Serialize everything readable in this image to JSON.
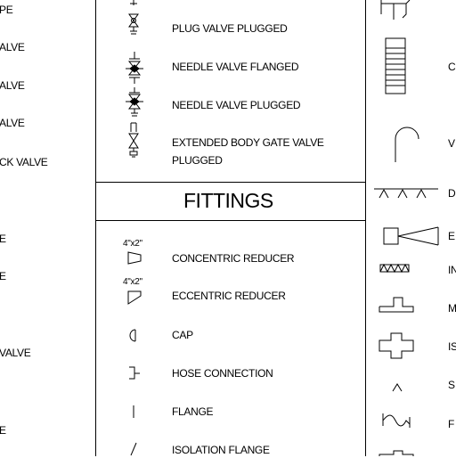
{
  "left_column_fragments": [
    "PE",
    "ALVE",
    "ALVE",
    "ALVE",
    "CK VALVE",
    "E",
    "E",
    "VALVE",
    "E"
  ],
  "valves": [
    {
      "label": "PLUG VALVE PLUGGED",
      "icon": "plug-valve-plugged-icon"
    },
    {
      "label": "NEEDLE VALVE FLANGED",
      "icon": "needle-valve-flanged-icon"
    },
    {
      "label": "NEEDLE VALVE PLUGGED",
      "icon": "needle-valve-plugged-icon"
    },
    {
      "label": "EXTENDED BODY GATE VALVE",
      "label2": "PLUGGED",
      "icon": "extended-body-gate-valve-plugged-icon"
    }
  ],
  "fittings_heading": "FITTINGS",
  "fittings": [
    {
      "label": "CONCENTRIC REDUCER",
      "size": "4\"x2\"",
      "icon": "concentric-reducer-icon"
    },
    {
      "label": "ECCENTRIC REDUCER",
      "size": "4\"x2\"",
      "icon": "eccentric-reducer-icon"
    },
    {
      "label": "CAP",
      "icon": "cap-icon"
    },
    {
      "label": "HOSE CONNECTION",
      "icon": "hose-connection-icon"
    },
    {
      "label": "FLANGE",
      "icon": "flange-icon"
    },
    {
      "label": "ISOLATION FLANGE",
      "icon": "isolation-flange-icon"
    }
  ],
  "right_column_fragments": [
    "C",
    "V",
    "D",
    "E",
    "IN",
    "M",
    "IS",
    "S",
    "F"
  ]
}
